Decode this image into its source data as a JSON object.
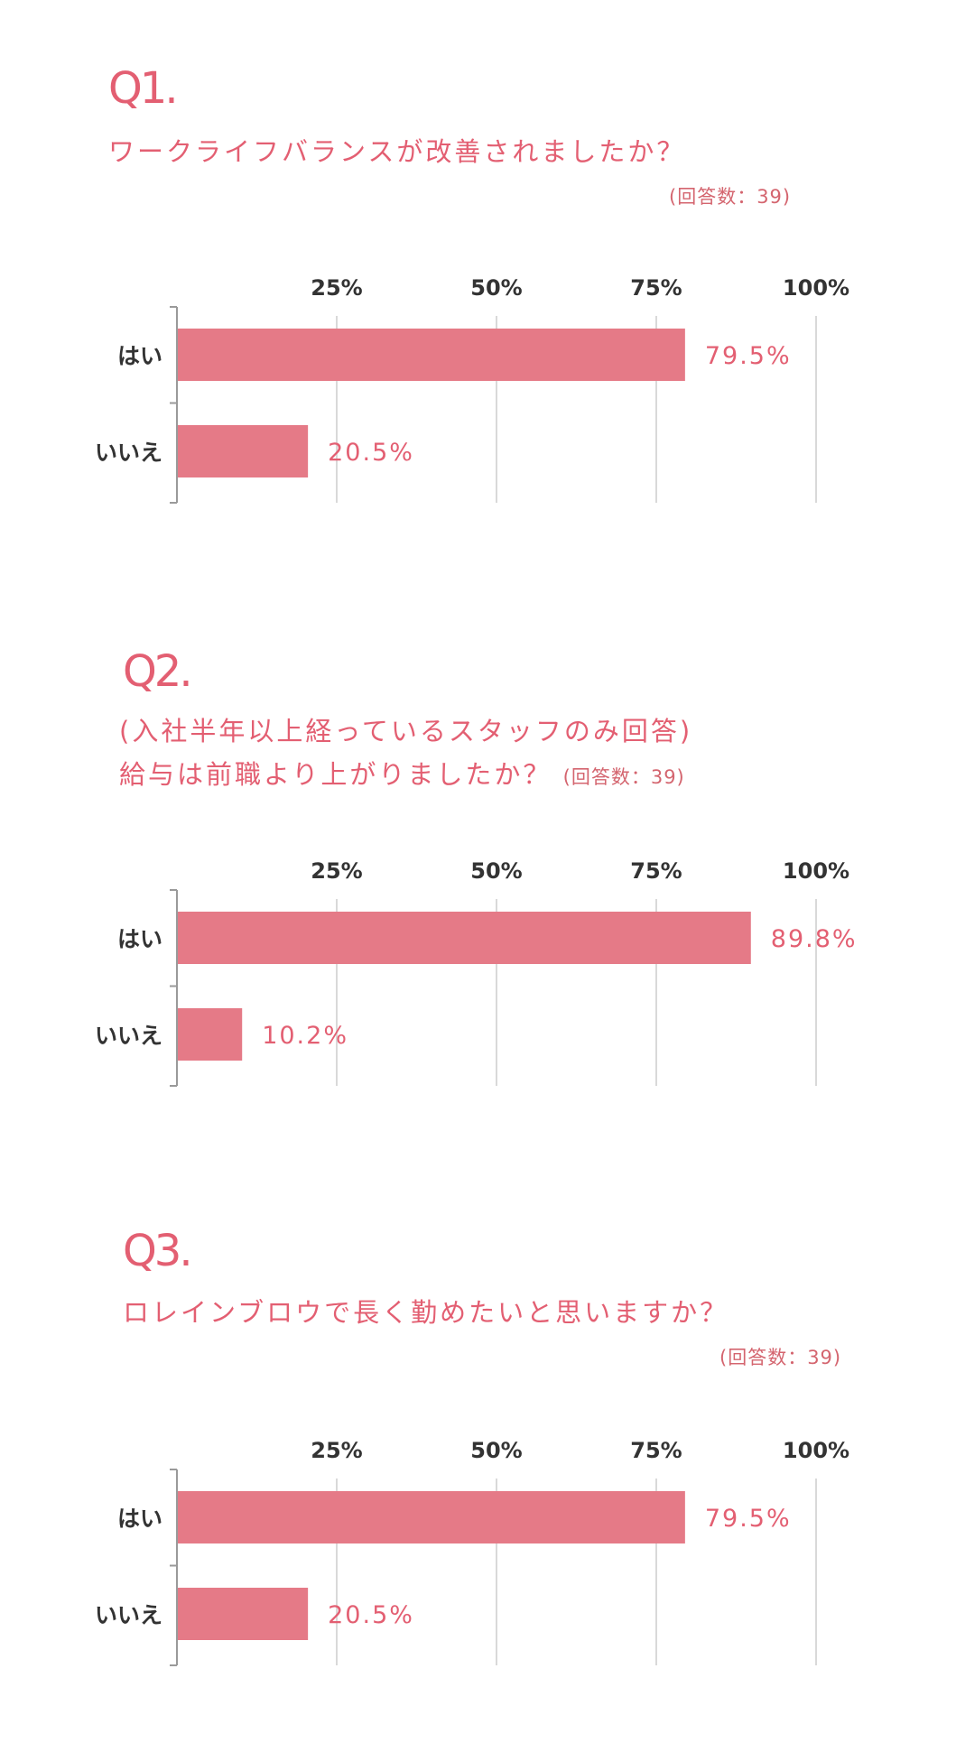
{
  "colors": {
    "accent": "#e35f72",
    "bar": "#e57a87",
    "grid": "#d9d9d9",
    "axis": "#9a9a9a",
    "text": "#333333"
  },
  "sections": [
    {
      "number": "Q1.",
      "lines": [
        "ワークライフバランスが改善されましたか？"
      ],
      "note": "(回答数：39)"
    },
    {
      "number": "Q2.",
      "lines": [
        "(入社半年以上経っているスタッフのみ回答)",
        "給与は前職より上がりましたか？"
      ],
      "note": "(回答数：39)"
    },
    {
      "number": "Q3.",
      "lines": [
        "ロレインブロウで長く勤めたいと思いますか？"
      ],
      "note": "(回答数：39)"
    }
  ],
  "chart_data": [
    {
      "type": "bar",
      "orientation": "horizontal",
      "categories": [
        "はい",
        "いいえ"
      ],
      "values": [
        79.5,
        20.5
      ],
      "value_labels": [
        "79.5%",
        "20.5%"
      ],
      "ticks": [
        25,
        50,
        75,
        100
      ],
      "tick_labels": [
        "25%",
        "50%",
        "75%",
        "100%"
      ],
      "xlim": [
        0,
        100
      ],
      "grid": true
    },
    {
      "type": "bar",
      "orientation": "horizontal",
      "categories": [
        "はい",
        "いいえ"
      ],
      "values": [
        89.8,
        10.2
      ],
      "value_labels": [
        "89.8%",
        "10.2%"
      ],
      "ticks": [
        25,
        50,
        75,
        100
      ],
      "tick_labels": [
        "25%",
        "50%",
        "75%",
        "100%"
      ],
      "xlim": [
        0,
        100
      ],
      "grid": true
    },
    {
      "type": "bar",
      "orientation": "horizontal",
      "categories": [
        "はい",
        "いいえ"
      ],
      "values": [
        79.5,
        20.5
      ],
      "value_labels": [
        "79.5%",
        "20.5%"
      ],
      "ticks": [
        25,
        50,
        75,
        100
      ],
      "tick_labels": [
        "25%",
        "50%",
        "75%",
        "100%"
      ],
      "xlim": [
        0,
        100
      ],
      "grid": true
    }
  ]
}
